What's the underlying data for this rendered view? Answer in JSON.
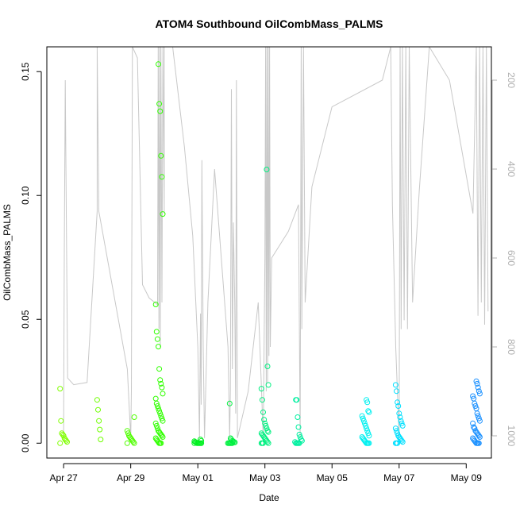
{
  "chart_data": {
    "type": "scatter",
    "title": "ATOM4 Southbound OilCombMass_PALMS",
    "xlabel": "Date",
    "ylabel": "OilCombMass_PALMS",
    "x_unit": "days since Apr 27",
    "xlim": [
      -0.5,
      12.75
    ],
    "ylim": [
      -0.006,
      0.16
    ],
    "x_ticks": [
      {
        "value": 0,
        "label": "Apr 27"
      },
      {
        "value": 2,
        "label": "Apr 29"
      },
      {
        "value": 4,
        "label": "May 01"
      },
      {
        "value": 6,
        "label": "May 03"
      },
      {
        "value": 8,
        "label": "May 05"
      },
      {
        "value": 10,
        "label": "May 07"
      },
      {
        "value": 12,
        "label": "May 09"
      }
    ],
    "y_ticks": [
      {
        "value": 0.0,
        "label": "0.00"
      },
      {
        "value": 0.05,
        "label": "0.05"
      },
      {
        "value": 0.1,
        "label": "0.10"
      },
      {
        "value": 0.15,
        "label": "0.15"
      }
    ],
    "right_axis": {
      "label": "",
      "range_top": 125,
      "range_bottom": 1050,
      "color": "#b0b0b0",
      "ticks": [
        {
          "value": 200,
          "label": "200"
        },
        {
          "value": 400,
          "label": "400"
        },
        {
          "value": 600,
          "label": "600"
        },
        {
          "value": 800,
          "label": "800"
        },
        {
          "value": 1000,
          "label": "1000"
        }
      ]
    },
    "altitude_trace": [
      [
        0.0,
        1005
      ],
      [
        0.02,
        590
      ],
      [
        0.05,
        200
      ],
      [
        0.08,
        495
      ],
      [
        0.12,
        870
      ],
      [
        0.3,
        885
      ],
      [
        0.7,
        880
      ],
      [
        1.0,
        495
      ],
      [
        1.0,
        125
      ],
      [
        1.05,
        495
      ],
      [
        1.9,
        850
      ],
      [
        2.0,
        1005
      ],
      [
        2.02,
        900
      ],
      [
        2.05,
        125
      ],
      [
        2.2,
        150
      ],
      [
        2.35,
        660
      ],
      [
        2.55,
        690
      ],
      [
        2.8,
        705
      ],
      [
        2.82,
        125
      ],
      [
        2.84,
        760
      ],
      [
        2.86,
        125
      ],
      [
        2.88,
        800
      ],
      [
        2.9,
        125
      ],
      [
        2.93,
        700
      ],
      [
        2.96,
        125
      ],
      [
        3.0,
        500
      ],
      [
        3.0,
        125
      ],
      [
        3.25,
        125
      ],
      [
        3.6,
        350
      ],
      [
        3.85,
        550
      ],
      [
        4.0,
        800
      ],
      [
        4.05,
        1005
      ],
      [
        4.08,
        725
      ],
      [
        4.1,
        930
      ],
      [
        4.12,
        380
      ],
      [
        4.16,
        800
      ],
      [
        4.2,
        1005
      ],
      [
        4.3,
        700
      ],
      [
        4.5,
        400
      ],
      [
        4.9,
        800
      ],
      [
        4.95,
        1005
      ],
      [
        4.97,
        900
      ],
      [
        5.0,
        220
      ],
      [
        5.03,
        850
      ],
      [
        5.06,
        520
      ],
      [
        5.1,
        700
      ],
      [
        5.13,
        950
      ],
      [
        5.15,
        200
      ],
      [
        5.18,
        1005
      ],
      [
        5.5,
        900
      ],
      [
        5.8,
        700
      ],
      [
        5.9,
        900
      ],
      [
        5.95,
        1005
      ],
      [
        6.0,
        600
      ],
      [
        6.02,
        125
      ],
      [
        6.04,
        900
      ],
      [
        6.06,
        125
      ],
      [
        6.08,
        880
      ],
      [
        6.1,
        125
      ],
      [
        6.12,
        820
      ],
      [
        6.14,
        125
      ],
      [
        6.16,
        800
      ],
      [
        6.2,
        600
      ],
      [
        6.7,
        540
      ],
      [
        7.0,
        480
      ],
      [
        7.05,
        1005
      ],
      [
        7.08,
        125
      ],
      [
        7.1,
        760
      ],
      [
        7.15,
        125
      ],
      [
        7.2,
        700
      ],
      [
        7.4,
        440
      ],
      [
        8.0,
        260
      ],
      [
        9.5,
        200
      ],
      [
        9.75,
        125
      ],
      [
        9.8,
        480
      ],
      [
        9.9,
        800
      ],
      [
        10.0,
        1005
      ],
      [
        10.03,
        125
      ],
      [
        10.06,
        760
      ],
      [
        10.1,
        125
      ],
      [
        10.15,
        740
      ],
      [
        10.2,
        125
      ],
      [
        10.25,
        760
      ],
      [
        10.3,
        125
      ],
      [
        10.4,
        700
      ],
      [
        10.6,
        450
      ],
      [
        10.9,
        125
      ],
      [
        11.5,
        200
      ],
      [
        12.2,
        500
      ],
      [
        12.3,
        125
      ],
      [
        12.35,
        730
      ],
      [
        12.4,
        125
      ],
      [
        12.45,
        700
      ],
      [
        12.5,
        125
      ],
      [
        12.55,
        750
      ],
      [
        12.6,
        125
      ],
      [
        12.65,
        720
      ]
    ],
    "series": [
      {
        "name": "Apr 27",
        "color": "#80ff00",
        "x": 0.0,
        "values": [
          0.022,
          0.009,
          0.004,
          0.0035,
          0.003,
          0.002,
          0.0015,
          0.001,
          0.0005,
          0.0
        ]
      },
      {
        "name": "Apr 28",
        "color": "#70ff00",
        "x": 1.0,
        "values": [
          0.0175,
          0.0135,
          0.009,
          0.0055,
          0.0015
        ]
      },
      {
        "name": "Apr 29",
        "color": "#50ff00",
        "x": 2.0,
        "values": [
          0.0105,
          0.005,
          0.004,
          0.003,
          0.0025,
          0.002,
          0.0015,
          0.001,
          0.0005,
          0.0,
          0.0
        ]
      },
      {
        "name": "Apr 30",
        "color": "#30ff00",
        "x": 2.85,
        "values": [
          0.153,
          0.137,
          0.134,
          0.116,
          0.1075,
          0.0925,
          0.056,
          0.045,
          0.042,
          0.039,
          0.03,
          0.0255,
          0.024,
          0.0225,
          0.02,
          0.018,
          0.016,
          0.015,
          0.014,
          0.013,
          0.012,
          0.011,
          0.01,
          0.009,
          0.008,
          0.007,
          0.006,
          0.005,
          0.0045,
          0.004,
          0.0035,
          0.003,
          0.0025,
          0.002,
          0.0015,
          0.001,
          0.0005,
          0.0,
          0.0,
          0.0
        ]
      },
      {
        "name": "May 01",
        "color": "#00f020",
        "x": 4.0,
        "values": [
          0.0015,
          0.001,
          0.0008,
          0.0005,
          0.0003,
          0.0,
          0.0,
          0.0,
          0.0,
          0.0,
          0.0,
          0.0
        ]
      },
      {
        "name": "May 02",
        "color": "#00f040",
        "x": 5.0,
        "values": [
          0.016,
          0.002,
          0.0015,
          0.001,
          0.0008,
          0.0005,
          0.0003,
          0.0,
          0.0,
          0.0,
          0.0,
          0.0,
          0.0
        ]
      },
      {
        "name": "May 03",
        "color": "#00f080",
        "x": 6.0,
        "values": [
          0.1105,
          0.031,
          0.0235,
          0.022,
          0.0175,
          0.0125,
          0.0095,
          0.008,
          0.007,
          0.006,
          0.005,
          0.0045,
          0.004,
          0.0035,
          0.003,
          0.0025,
          0.002,
          0.0015,
          0.001,
          0.0005,
          0.0,
          0.0,
          0.0,
          0.0
        ]
      },
      {
        "name": "May 04",
        "color": "#00f0a0",
        "x": 7.0,
        "values": [
          0.0175,
          0.0175,
          0.0105,
          0.0065,
          0.0035,
          0.0025,
          0.0015,
          0.001,
          0.0005,
          0.0,
          0.0,
          0.0,
          0.0,
          0.0
        ]
      },
      {
        "name": "May 06",
        "color": "#00f0f0",
        "x": 9.0,
        "values": [
          0.0175,
          0.0165,
          0.013,
          0.0125,
          0.011,
          0.01,
          0.009,
          0.008,
          0.007,
          0.006,
          0.005,
          0.004,
          0.003,
          0.0025,
          0.002,
          0.0015,
          0.001,
          0.0005,
          0.0,
          0.0,
          0.0,
          0.0
        ]
      },
      {
        "name": "May 07",
        "color": "#00e0ff",
        "x": 10.0,
        "values": [
          0.0235,
          0.021,
          0.0165,
          0.015,
          0.012,
          0.0105,
          0.009,
          0.008,
          0.007,
          0.006,
          0.005,
          0.004,
          0.003,
          0.0025,
          0.002,
          0.0015,
          0.001,
          0.0005,
          0.0,
          0.0,
          0.0
        ]
      },
      {
        "name": "May 09",
        "color": "#1a90ff",
        "x": 12.3,
        "values": [
          0.025,
          0.024,
          0.0225,
          0.021,
          0.02,
          0.019,
          0.018,
          0.016,
          0.015,
          0.014,
          0.012,
          0.011,
          0.01,
          0.009,
          0.008,
          0.0065,
          0.006,
          0.005,
          0.0045,
          0.004,
          0.0035,
          0.003,
          0.0025,
          0.002,
          0.0015,
          0.001,
          0.0005,
          0.0,
          0.0,
          0.0,
          0.0
        ]
      }
    ]
  }
}
